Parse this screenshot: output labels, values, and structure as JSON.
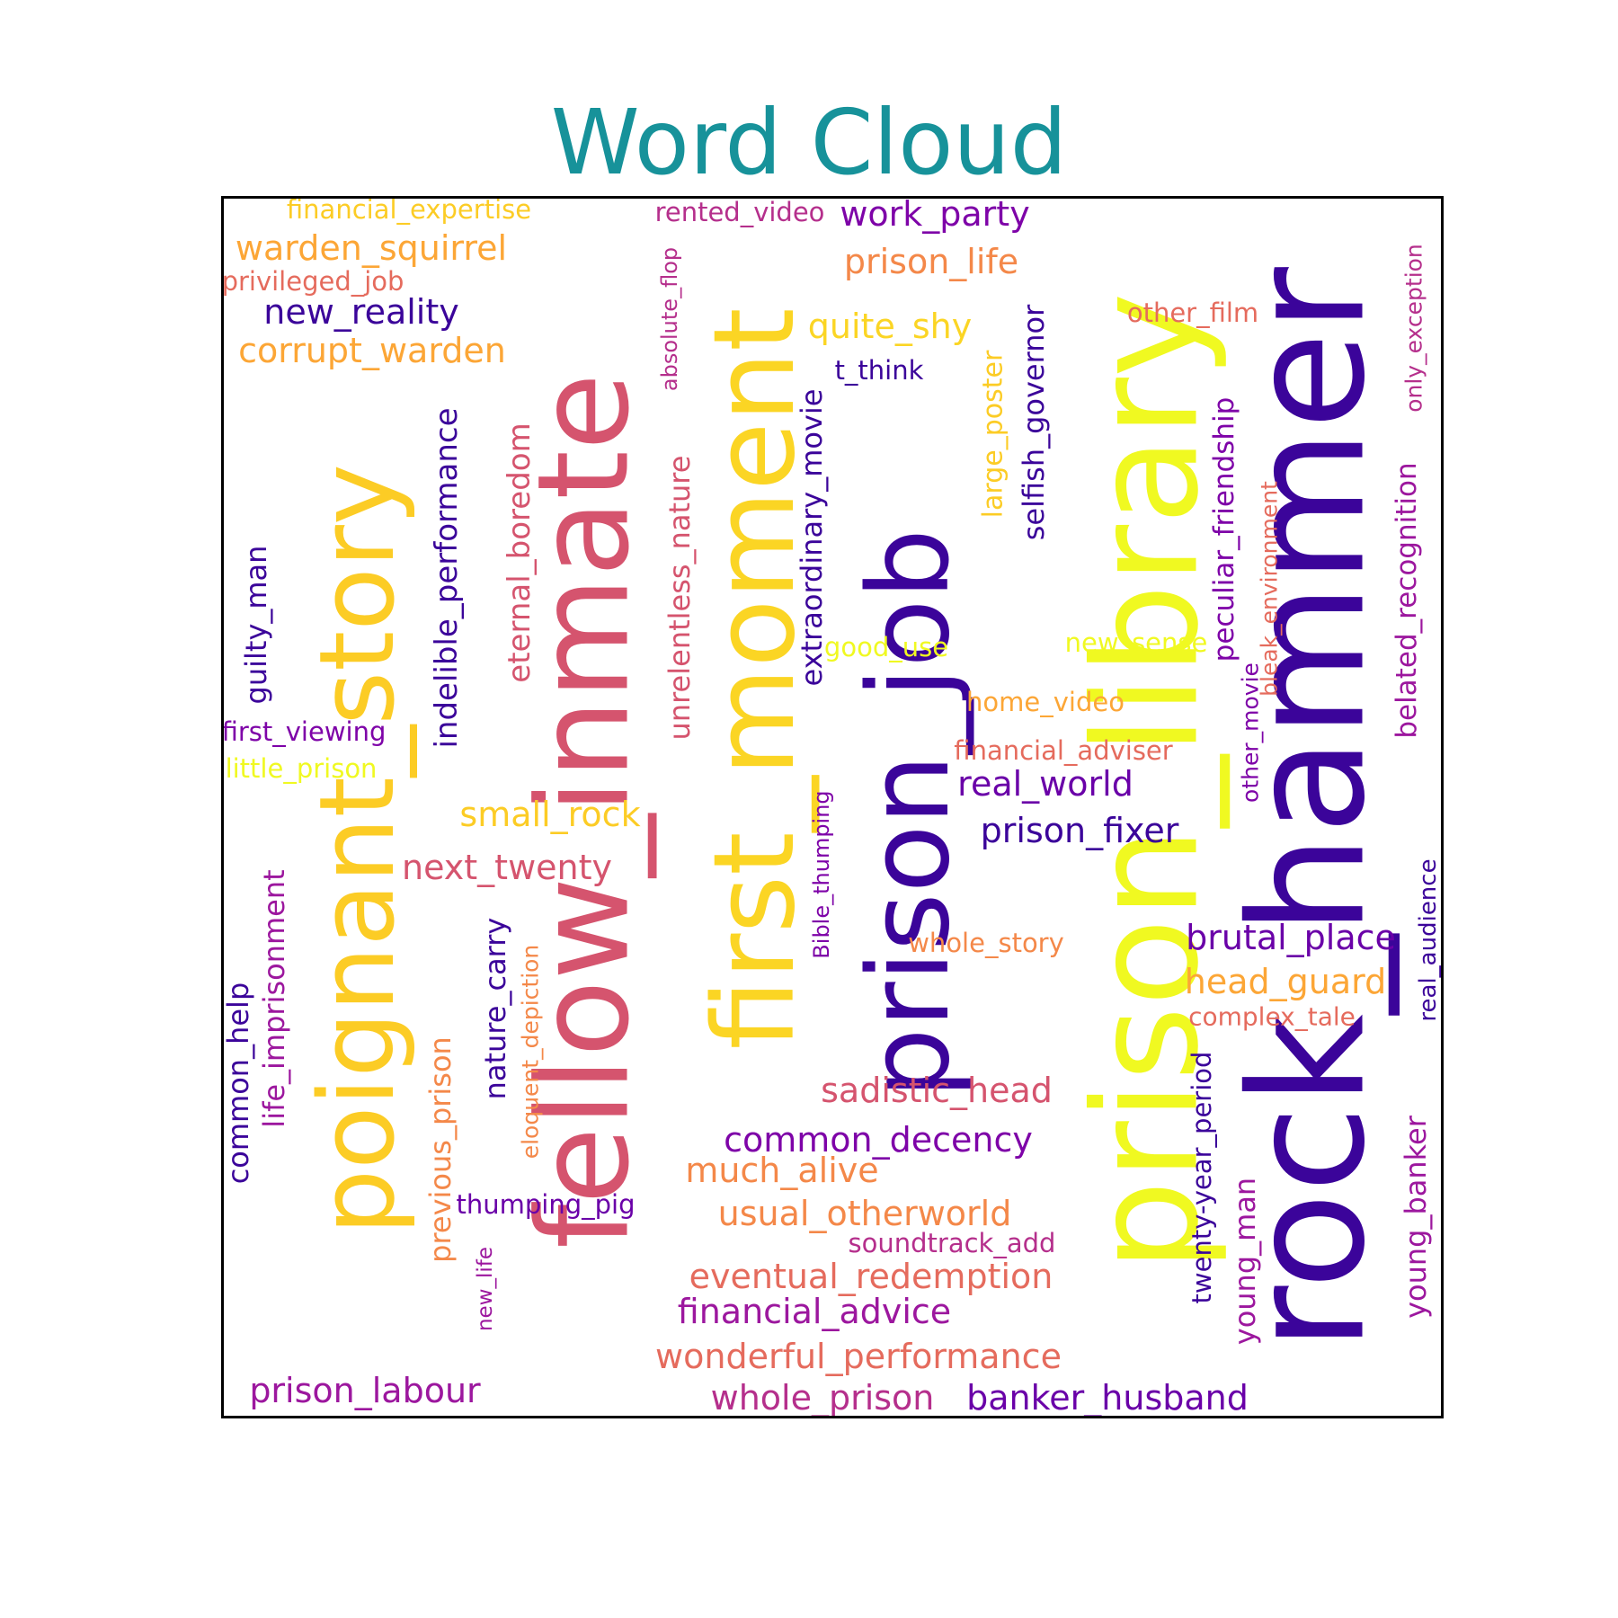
{
  "title": "Word Cloud",
  "words": [
    {
      "text": "rock_hammer",
      "color": "#3b049a",
      "rotate": true
    },
    {
      "text": "prison_library",
      "color": "#f0f921",
      "rotate": true
    },
    {
      "text": "prison_job",
      "color": "#3b049a",
      "rotate": true
    },
    {
      "text": "fellow_inmate",
      "color": "#d5546e",
      "rotate": true
    },
    {
      "text": "first_moment",
      "color": "#fbd524",
      "rotate": true
    },
    {
      "text": "poignant_story",
      "color": "#fccc25",
      "rotate": true
    },
    {
      "text": "indelible_performance",
      "color": "#3b049a",
      "rotate": true
    },
    {
      "text": "eternal_boredom",
      "color": "#d5546e",
      "rotate": true
    },
    {
      "text": "unrelentless_nature",
      "color": "#d5546e",
      "rotate": true
    },
    {
      "text": "extraordinary_movie",
      "color": "#3b049a",
      "rotate": true
    },
    {
      "text": "selfish_governor",
      "color": "#3b049a",
      "rotate": true
    },
    {
      "text": "large_poster",
      "color": "#fccc25",
      "rotate": true
    },
    {
      "text": "peculiar_friendship",
      "color": "#7e03a8",
      "rotate": true
    },
    {
      "text": "bleak_environment",
      "color": "#e56b5d",
      "rotate": true
    },
    {
      "text": "belated_recognition",
      "color": "#9c179e",
      "rotate": true
    },
    {
      "text": "only_exception",
      "color": "#b52f8c",
      "rotate": true
    },
    {
      "text": "absolute_flop",
      "color": "#b52f8c",
      "rotate": true
    },
    {
      "text": "guilty_man",
      "color": "#3b049a",
      "rotate": true
    },
    {
      "text": "life_imprisonment",
      "color": "#9c179e",
      "rotate": true
    },
    {
      "text": "common_help",
      "color": "#3b049a",
      "rotate": true
    },
    {
      "text": "previous_prison",
      "color": "#f48849",
      "rotate": true
    },
    {
      "text": "nature_carry",
      "color": "#3b049a",
      "rotate": true
    },
    {
      "text": "eloquent_depiction",
      "color": "#f48849",
      "rotate": true
    },
    {
      "text": "new_life",
      "color": "#9c179e",
      "rotate": true
    },
    {
      "text": "Bible_thumping",
      "color": "#7e03a8",
      "rotate": true
    },
    {
      "text": "twenty-year_period",
      "color": "#3b049a",
      "rotate": true
    },
    {
      "text": "young_man",
      "color": "#9c179e",
      "rotate": true
    },
    {
      "text": "young_banker",
      "color": "#9c179e",
      "rotate": true
    },
    {
      "text": "real_audience",
      "color": "#3b049a",
      "rotate": true
    },
    {
      "text": "other_movie",
      "color": "#7e03a8",
      "rotate": true
    },
    {
      "text": "financial_expertise",
      "color": "#fccc25",
      "rotate": false
    },
    {
      "text": "warden_squirrel",
      "color": "#fca636",
      "rotate": false
    },
    {
      "text": "privileged_job",
      "color": "#e56b5d",
      "rotate": false
    },
    {
      "text": "new_reality",
      "color": "#3b049a",
      "rotate": false
    },
    {
      "text": "corrupt_warden",
      "color": "#fca636",
      "rotate": false
    },
    {
      "text": "rented_video",
      "color": "#b52f8c",
      "rotate": false
    },
    {
      "text": "work_party",
      "color": "#7e03a8",
      "rotate": false
    },
    {
      "text": "prison_life",
      "color": "#f48849",
      "rotate": false
    },
    {
      "text": "quite_shy",
      "color": "#fbd524",
      "rotate": false
    },
    {
      "text": "t_think",
      "color": "#3b049a",
      "rotate": false
    },
    {
      "text": "other_film",
      "color": "#e56b5d",
      "rotate": false
    },
    {
      "text": "good_use",
      "color": "#f0f921",
      "rotate": false
    },
    {
      "text": "new_sense",
      "color": "#f0f921",
      "rotate": false
    },
    {
      "text": "home_video",
      "color": "#fca636",
      "rotate": false
    },
    {
      "text": "financial_adviser",
      "color": "#e56b5d",
      "rotate": false
    },
    {
      "text": "real_world",
      "color": "#6a00a8",
      "rotate": false
    },
    {
      "text": "prison_fixer",
      "color": "#3b049a",
      "rotate": false
    },
    {
      "text": "first_viewing",
      "color": "#7e03a8",
      "rotate": false
    },
    {
      "text": "little_prison",
      "color": "#f0f921",
      "rotate": false
    },
    {
      "text": "small_rock",
      "color": "#fccc25",
      "rotate": false
    },
    {
      "text": "next_twenty",
      "color": "#d5546e",
      "rotate": false
    },
    {
      "text": "whole_story",
      "color": "#f48849",
      "rotate": false
    },
    {
      "text": "brutal_place",
      "color": "#6a00a8",
      "rotate": false
    },
    {
      "text": "head_guard",
      "color": "#fca636",
      "rotate": false
    },
    {
      "text": "complex_tale",
      "color": "#e56b5d",
      "rotate": false
    },
    {
      "text": "sadistic_head",
      "color": "#d5546e",
      "rotate": false
    },
    {
      "text": "common_decency",
      "color": "#7e03a8",
      "rotate": false
    },
    {
      "text": "much_alive",
      "color": "#f48849",
      "rotate": false
    },
    {
      "text": "thumping_pig",
      "color": "#6a00a8",
      "rotate": false
    },
    {
      "text": "usual_otherworld",
      "color": "#f48849",
      "rotate": false
    },
    {
      "text": "soundtrack_add",
      "color": "#b52f8c",
      "rotate": false
    },
    {
      "text": "eventual_redemption",
      "color": "#e56b5d",
      "rotate": false
    },
    {
      "text": "financial_advice",
      "color": "#9c179e",
      "rotate": false
    },
    {
      "text": "wonderful_performance",
      "color": "#e56b5d",
      "rotate": false
    },
    {
      "text": "prison_labour",
      "color": "#9c179e",
      "rotate": false
    },
    {
      "text": "whole_prison",
      "color": "#b52f8c",
      "rotate": false
    },
    {
      "text": "banker_husband",
      "color": "#6a00a8",
      "rotate": false
    }
  ]
}
